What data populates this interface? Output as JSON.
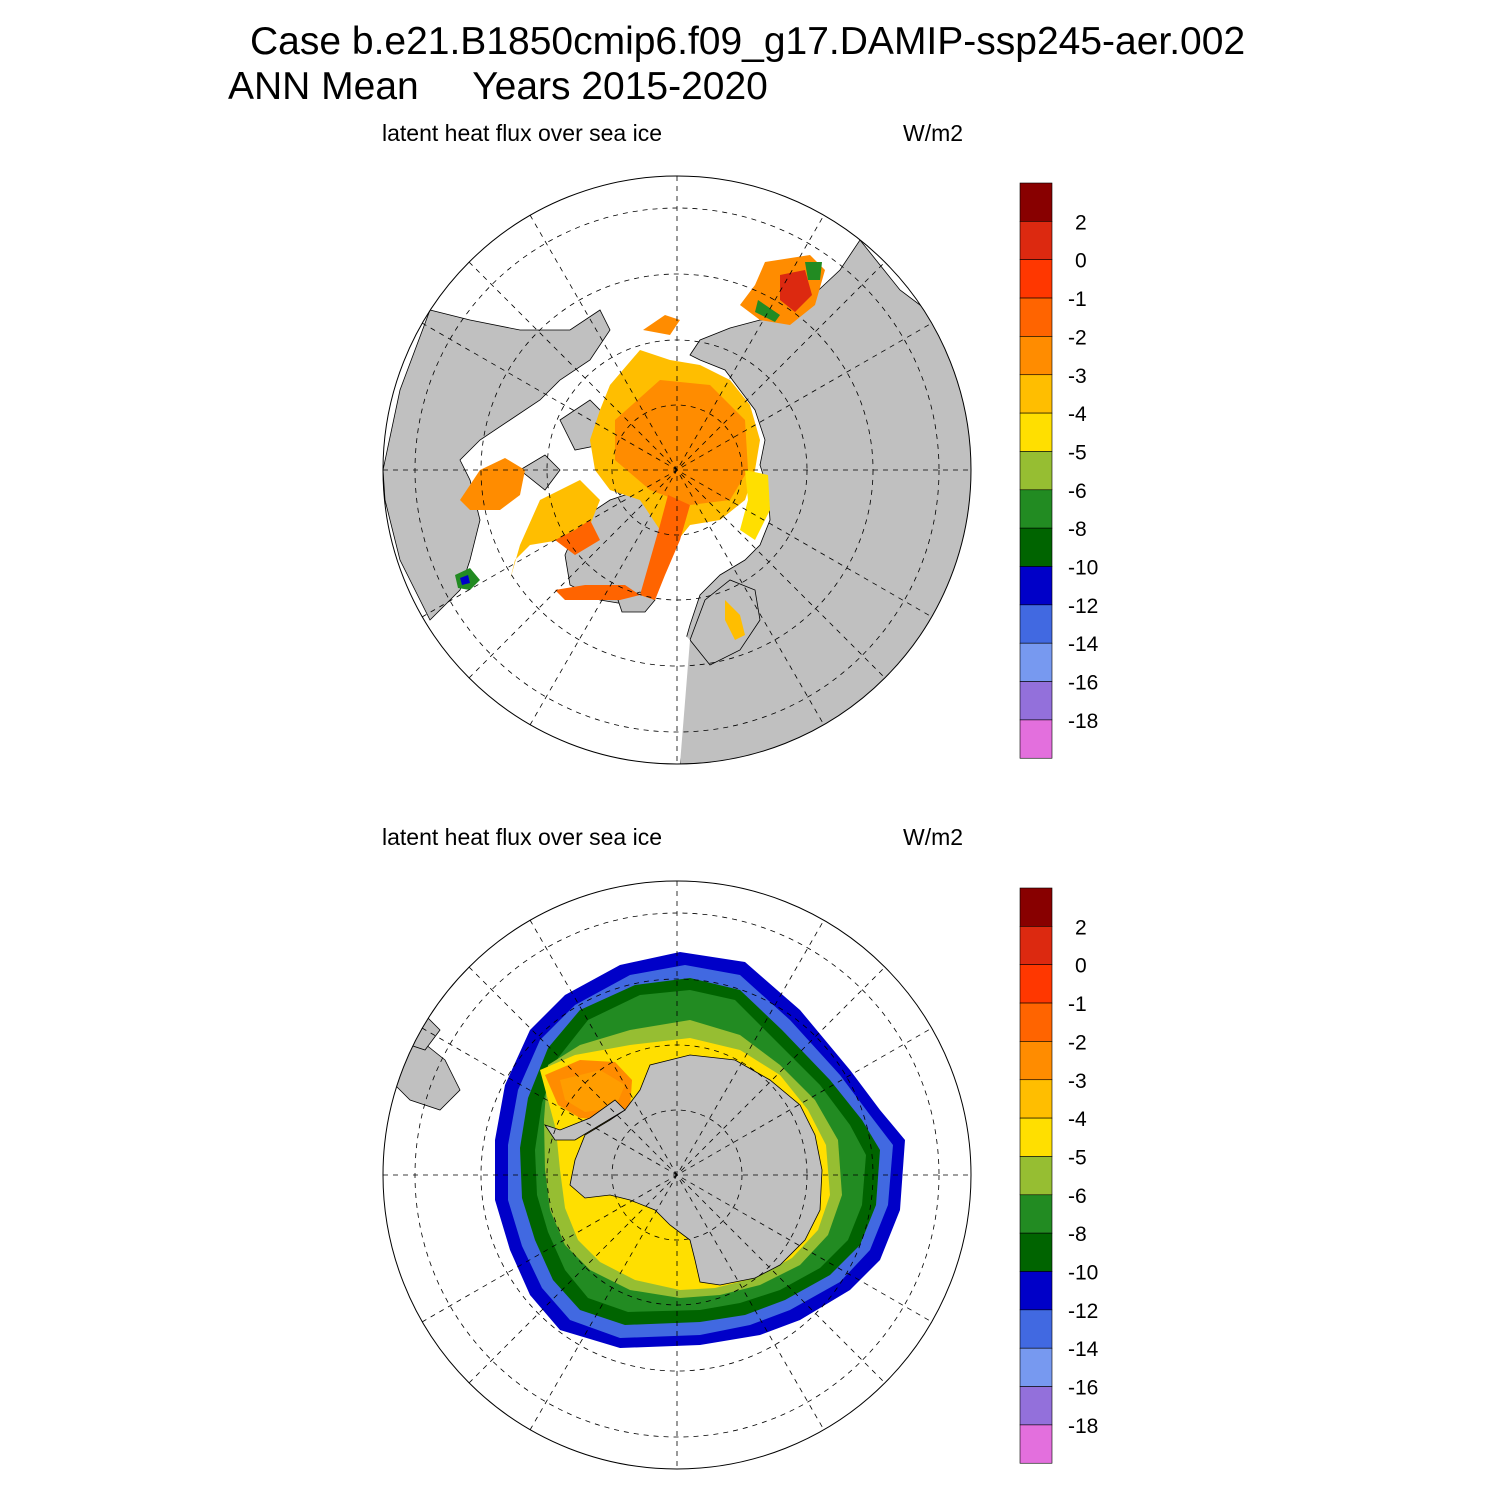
{
  "header": {
    "title_line_1": "Case b.e21.B1850cmip6.f09_g17.DAMIP-ssp245-aer.002",
    "title_line_2": "ANN Mean     Years 2015-2020"
  },
  "colors": {
    "land": "#c0c0c0",
    "colorbar_fills": [
      "#880000",
      "#dc2910",
      "#ff3700",
      "#ff6400",
      "#ff8c00",
      "#ffbe00",
      "#ffdf00",
      "#96be32",
      "#228b22",
      "#006400",
      "#0000c8",
      "#4169e1",
      "#7799f0",
      "#9370db",
      "#e36fdd"
    ]
  },
  "chart_data": [
    {
      "type": "heatmap",
      "projection": "north polar stereographic",
      "hemisphere": "NH",
      "title": "latent heat flux over sea ice",
      "units": "W/m2",
      "colorbar_levels": [
        2,
        0,
        -1,
        -2,
        -3,
        -4,
        -5,
        -6,
        -8,
        -10,
        -12,
        -14,
        -16,
        -18
      ],
      "colorbar_range": [
        -20,
        4
      ],
      "dominant_values": {
        "central_arctic": -2.5,
        "greenland_sea_to_fram_strait": -1,
        "canadian_archipelago": -3,
        "hudson_bay": -3,
        "barents_sea": -4,
        "sea_of_okhotsk": -5
      },
      "grid": "dashed lat-lon"
    },
    {
      "type": "heatmap",
      "projection": "south polar stereographic",
      "hemisphere": "SH",
      "title": "latent heat flux over sea ice",
      "units": "W/m2",
      "colorbar_levels": [
        2,
        0,
        -1,
        -2,
        -3,
        -4,
        -5,
        -6,
        -8,
        -10,
        -12,
        -14,
        -16,
        -18
      ],
      "colorbar_range": [
        -20,
        4
      ],
      "dominant_values": {
        "weddell_sea": -2.5,
        "coastal_ring": -4.5,
        "middle_ring": -7,
        "outer_ice_edge": -11
      },
      "grid": "dashed lat-lon"
    }
  ]
}
